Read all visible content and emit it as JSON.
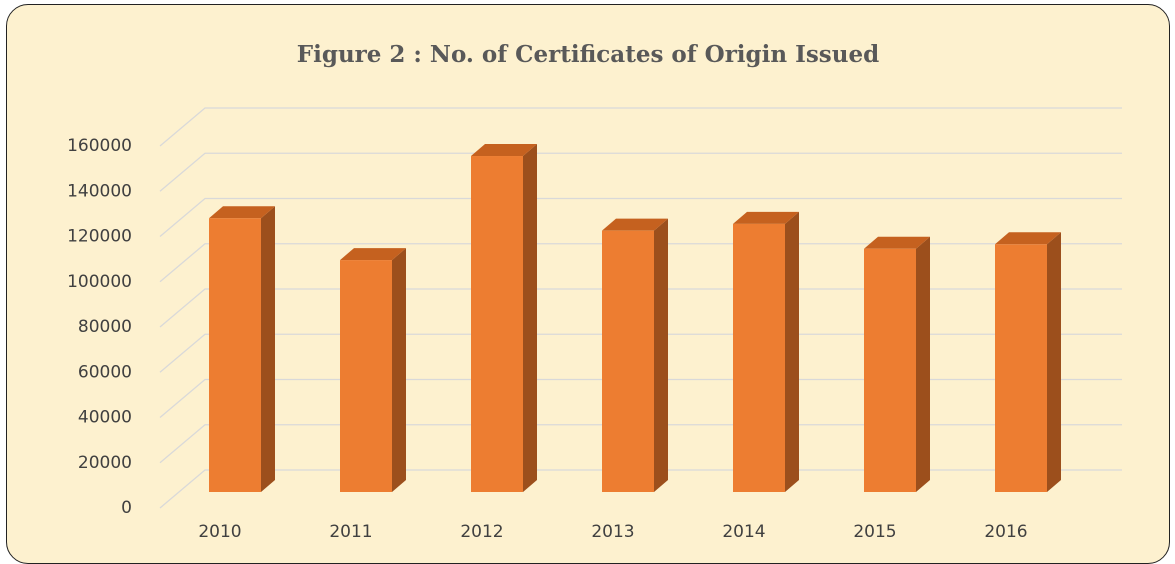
{
  "chart_data": {
    "type": "bar",
    "title": "Figure 2 : No. of Certificates of Origin Issued",
    "categories": [
      "2010",
      "2011",
      "2012",
      "2013",
      "2014",
      "2015",
      "2016"
    ],
    "values": [
      121000,
      102500,
      148500,
      115500,
      118500,
      107500,
      109500
    ],
    "color": "#ed7d31",
    "ylim": [
      0,
      160000
    ],
    "yticks": [
      0,
      20000,
      40000,
      60000,
      80000,
      100000,
      120000,
      140000,
      160000
    ],
    "grid": true
  }
}
